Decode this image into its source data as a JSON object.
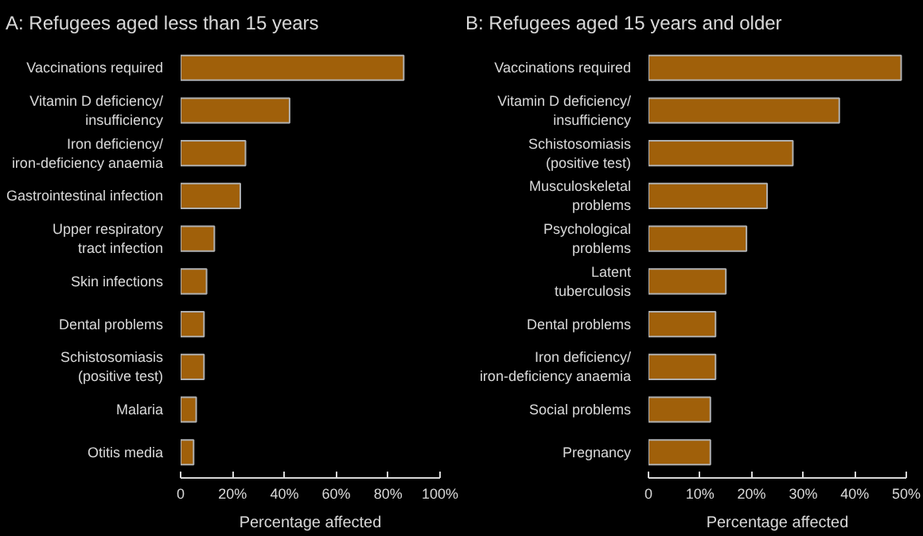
{
  "chart_data": [
    {
      "type": "bar",
      "orientation": "horizontal",
      "title": "A: Refugees aged less than 15 years",
      "xlabel": "Percentage affected",
      "categories": [
        "Vaccinations required",
        "Vitamin D deficiency/\ninsufficiency",
        "Iron deficiency/\niron-deficiency anaemia",
        "Gastrointestinal infection",
        "Upper respiratory\ntract infection",
        "Skin infections",
        "Dental problems",
        "Schistosomiasis\n(positive test)",
        "Malaria",
        "Otitis media"
      ],
      "values": [
        86,
        42,
        25,
        23,
        13,
        10,
        9,
        9,
        6,
        5
      ],
      "color": "#a0600a",
      "xlim": [
        0,
        100
      ],
      "xticks": [
        0,
        {
          "value": 20,
          "label": "20%"
        },
        {
          "value": 40,
          "label": "40%"
        },
        {
          "value": 60,
          "label": "60%"
        },
        {
          "value": 80,
          "label": "80%"
        },
        {
          "value": 100,
          "label": "100%"
        }
      ],
      "grid": false
    },
    {
      "type": "bar",
      "orientation": "horizontal",
      "title": "B: Refugees aged 15 years and older",
      "xlabel": "Percentage affected",
      "categories": [
        "Vaccinations required",
        "Vitamin D deficiency/\ninsufficiency",
        "Schistosomiasis\n(positive test)",
        "Musculoskeletal\nproblems",
        "Psychological\nproblems",
        "Latent\ntuberculosis",
        "Dental problems",
        "Iron deficiency/\niron-deficiency anaemia",
        "Social problems",
        "Pregnancy"
      ],
      "values": [
        49,
        37,
        28,
        23,
        19,
        15,
        13,
        13,
        12,
        12
      ],
      "color": "#a0600a",
      "xlim": [
        0,
        50
      ],
      "xticks": [
        0,
        {
          "value": 10,
          "label": "10%"
        },
        {
          "value": 20,
          "label": "20%"
        },
        {
          "value": 30,
          "label": "30%"
        },
        {
          "value": 40,
          "label": "40%"
        },
        {
          "value": 50,
          "label": "50%"
        }
      ],
      "grid": false
    }
  ]
}
